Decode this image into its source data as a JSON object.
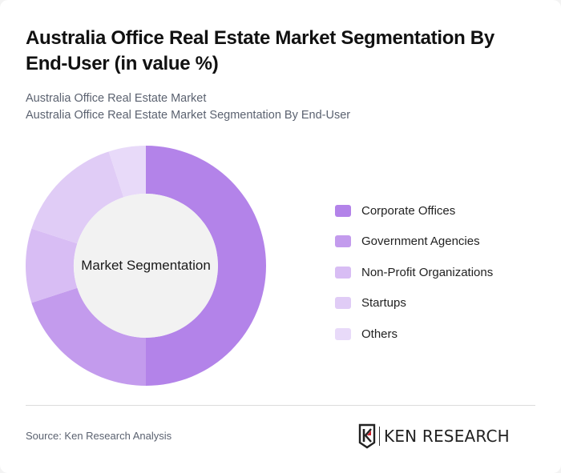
{
  "header": {
    "title": "Australia Office Real Estate Market Segmentation By End-User (in value %)",
    "subtitle_line1": "Australia Office Real Estate Market",
    "subtitle_line2": "Australia Office Real Estate Market Segmentation By End-User"
  },
  "chart": {
    "center_label": "Market Segmentation"
  },
  "legend": {
    "items": [
      {
        "label": "Corporate Offices",
        "color": "#b383e9"
      },
      {
        "label": "Government Agencies",
        "color": "#c39bed"
      },
      {
        "label": "Non-Profit Organizations",
        "color": "#d8bdf4"
      },
      {
        "label": "Startups",
        "color": "#e0ccf6"
      },
      {
        "label": "Others",
        "color": "#e8daf9"
      }
    ]
  },
  "footer": {
    "source": "Source: Ken Research Analysis",
    "logo_text": "KEN RESEARCH"
  },
  "chart_data": {
    "type": "pie",
    "variant": "donut",
    "title": "Australia Office Real Estate Market Segmentation By End-User (in value %)",
    "subtitle": "Australia Office Real Estate Market Segmentation By End-User",
    "center_label": "Market Segmentation",
    "categories": [
      "Corporate Offices",
      "Government Agencies",
      "Non-Profit Organizations",
      "Startups",
      "Others"
    ],
    "values": [
      50,
      20,
      10,
      15,
      5
    ],
    "unit": "%",
    "colors": [
      "#b383e9",
      "#c39bed",
      "#d8bdf4",
      "#e0ccf6",
      "#e8daf9"
    ],
    "start_angle": "12 o'clock, clockwise",
    "legend_position": "right"
  }
}
